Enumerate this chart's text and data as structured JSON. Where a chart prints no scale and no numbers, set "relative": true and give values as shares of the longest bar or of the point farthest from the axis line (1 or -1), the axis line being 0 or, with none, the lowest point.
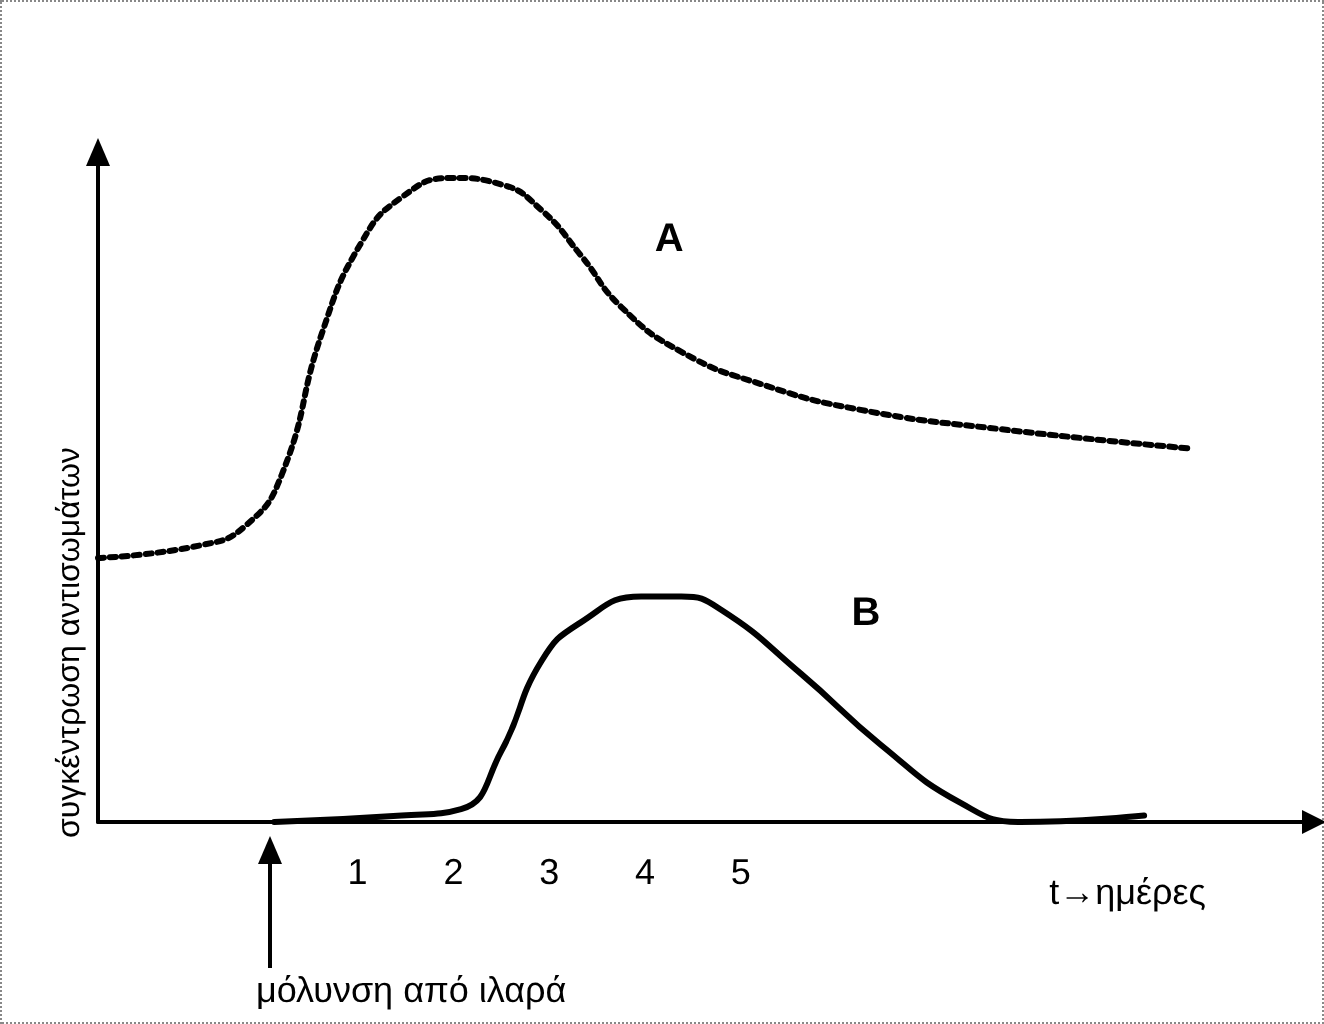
{
  "chart_data": {
    "type": "line",
    "relative": true,
    "ylabel": "συγκέντρωση αντισωμάτων",
    "xlabel": "t→ημέρες",
    "xlim": [
      -1.71,
      10.9
    ],
    "xticks": [
      1,
      2,
      3,
      4,
      5
    ],
    "grid": false,
    "legend": false,
    "marker": "none",
    "annotations": [
      "μόλυνση από ιλαρά"
    ],
    "series": [
      {
        "name": "A",
        "color": "#000000",
        "line_style": "dotted",
        "x": [
          -1.71,
          -0.63,
          -0.17,
          0.21,
          0.63,
          1.04,
          1.46,
          1.98,
          2.5,
          2.92,
          3.33,
          3.75,
          4.38,
          5.21,
          6.25,
          7.71,
          9.69
        ],
        "values": [
          0.41,
          0.43,
          0.46,
          0.54,
          0.76,
          0.9,
          0.97,
          1,
          0.99,
          0.95,
          0.88,
          0.8,
          0.73,
          0.68,
          0.64,
          0.61,
          0.58
        ]
      },
      {
        "name": "B",
        "color": "#000000",
        "line_style": "solid",
        "x": [
          0.13,
          1.46,
          2.08,
          2.5,
          2.92,
          3.33,
          3.96,
          4.38,
          4.79,
          5.63,
          6.46,
          7.29,
          7.92,
          9.21
        ],
        "values": [
          0,
          0.01,
          0.02,
          0.11,
          0.25,
          0.31,
          0.35,
          0.35,
          0.33,
          0.23,
          0.12,
          0.03,
          0,
          0.01
        ]
      }
    ]
  }
}
